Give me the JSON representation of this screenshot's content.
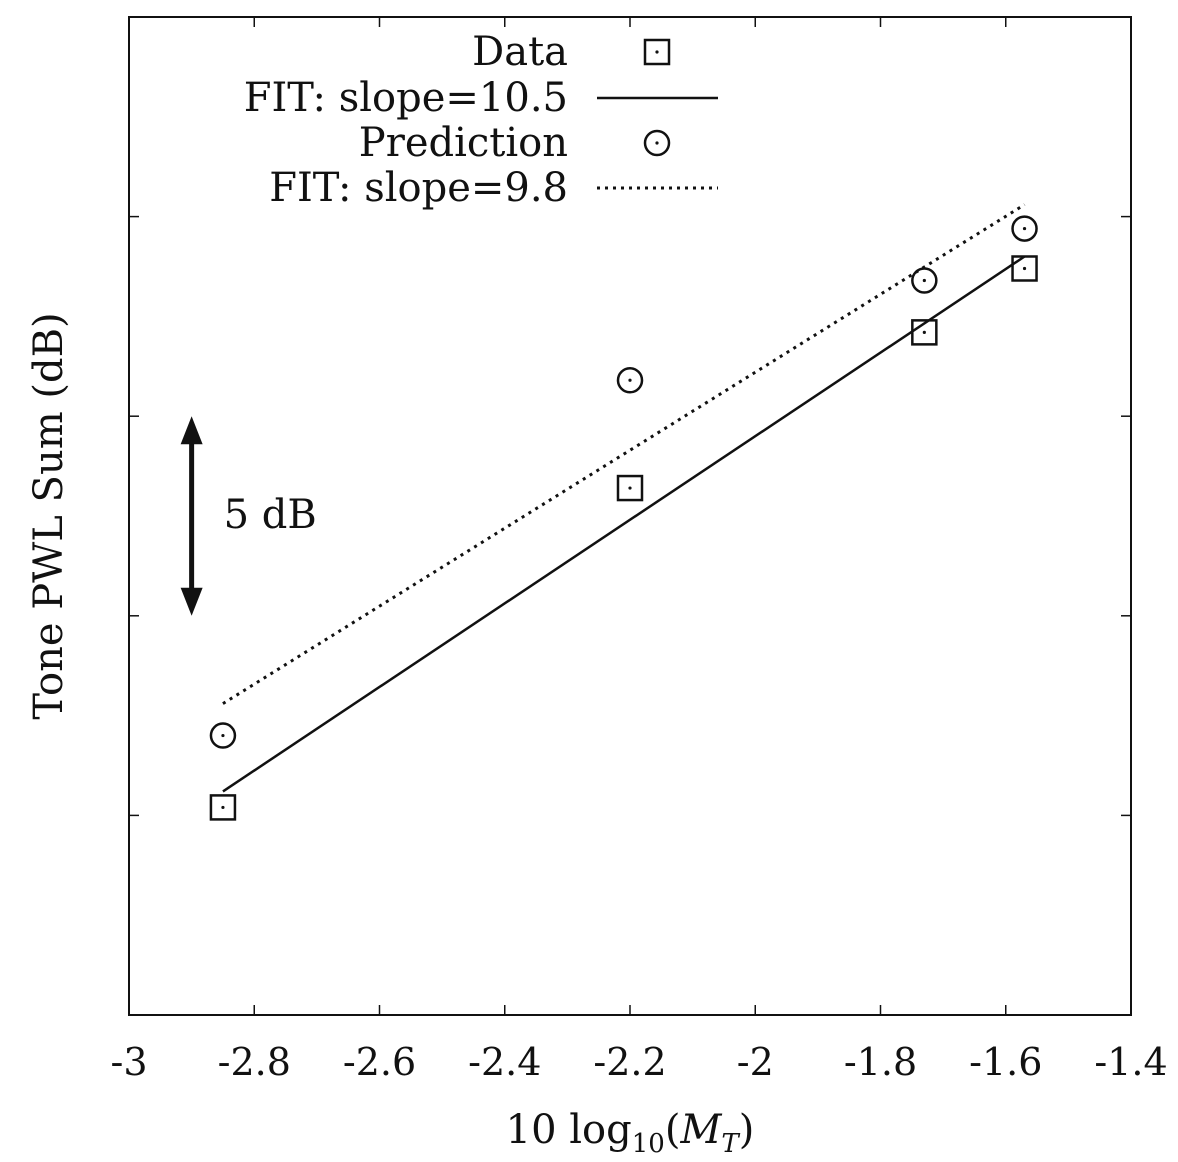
{
  "chart_data": {
    "type": "scatter",
    "xlabel": "10 log₁₀(M_T)",
    "xlabel_parts": {
      "prefix": "10 log",
      "sub": "10",
      "open": "(",
      "var": "M",
      "var_sub": "T",
      "close": ")"
    },
    "ylabel": "Tone PWL Sum (dB)",
    "xlim": [
      -3,
      -1.4
    ],
    "xticks": [
      "-3",
      "-2.8",
      "-2.6",
      "-2.4",
      "-2.2",
      "-2",
      "-1.8",
      "-1.6",
      "-1.4"
    ],
    "y_scale_note": "relative dB; 5 dB per gridline",
    "ylim": [
      0,
      25
    ],
    "grid": false,
    "legend_position": "top-right",
    "series": [
      {
        "name": "Data",
        "style": "square",
        "x": [
          -2.85,
          -2.2,
          -1.73,
          -1.57
        ],
        "y": [
          5.2,
          13.2,
          17.1,
          18.7
        ]
      },
      {
        "name": "FIT: slope=10.5",
        "style": "solid-line",
        "x": [
          -2.85,
          -1.57
        ],
        "y": [
          5.6,
          19.0
        ]
      },
      {
        "name": "Prediction",
        "style": "circle",
        "x": [
          -2.85,
          -2.2,
          -1.73,
          -1.57
        ],
        "y": [
          7.0,
          15.9,
          18.4,
          19.7
        ]
      },
      {
        "name": "FIT: slope=9.8",
        "style": "dotted-line",
        "x": [
          -2.85,
          -1.57
        ],
        "y": [
          7.8,
          20.3
        ]
      }
    ],
    "annotations": [
      {
        "text": "5 dB",
        "type": "double-arrow",
        "x": -2.9,
        "y_from": 10,
        "y_to": 15
      }
    ]
  }
}
